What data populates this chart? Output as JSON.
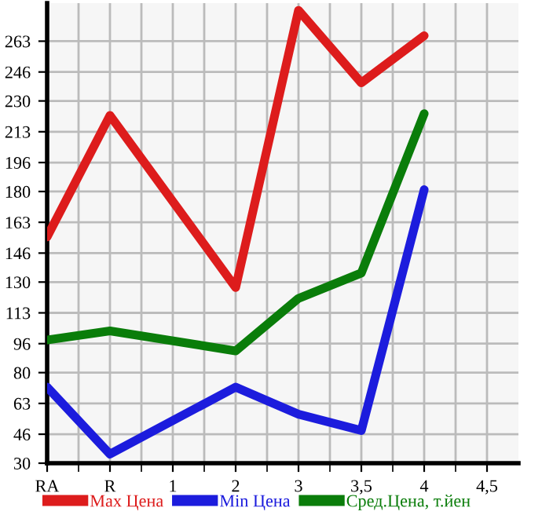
{
  "chart_data": {
    "type": "line",
    "categories": [
      "RA",
      "R",
      "1",
      "2",
      "3",
      "3,5",
      "4",
      "4,5"
    ],
    "series": [
      {
        "name": "Max Цена",
        "color": "#dd1c1c",
        "values": [
          155,
          222,
          null,
          127,
          280,
          240,
          266,
          null
        ]
      },
      {
        "name": "Min Цена",
        "color": "#1c1cdd",
        "values": [
          72,
          35,
          null,
          72,
          57,
          48,
          181,
          null
        ]
      },
      {
        "name": "Сред.Цена, т.йен",
        "color": "#0a7d0a",
        "values": [
          98,
          103,
          null,
          92,
          121,
          135,
          223,
          null
        ]
      }
    ],
    "ylim": [
      30,
      284
    ],
    "yticks": [
      30,
      46,
      63,
      80,
      96,
      113,
      130,
      146,
      163,
      180,
      196,
      213,
      230,
      246,
      263
    ],
    "grid": true,
    "legend": "bottom",
    "marker": "none",
    "line_style": "solid"
  }
}
